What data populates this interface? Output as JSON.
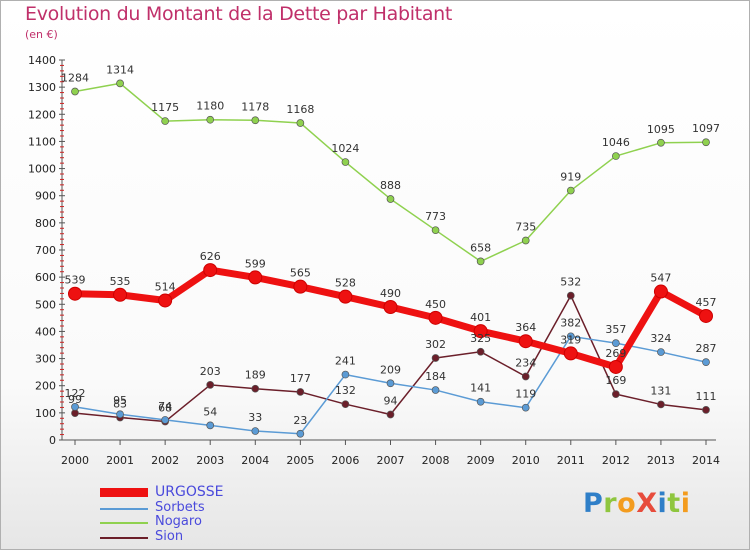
{
  "title": "Evolution du Montant de la Dette par Habitant",
  "unit": "(en €)",
  "logo": "ProXiti",
  "chart_data": {
    "type": "line",
    "x": [
      "2000",
      "2001",
      "2002",
      "2003",
      "2004",
      "2005",
      "2006",
      "2007",
      "2008",
      "2009",
      "2010",
      "2011",
      "2012",
      "2013",
      "2014"
    ],
    "ylim": [
      0,
      1400
    ],
    "yticks": [
      0,
      100,
      200,
      300,
      400,
      500,
      600,
      700,
      800,
      900,
      1000,
      1100,
      1200,
      1300,
      1400
    ],
    "grid": false,
    "legend_position": "bottom-left",
    "series": [
      {
        "name": "URGOSSE",
        "color": "#ee1111",
        "values": [
          539,
          535,
          514,
          626,
          599,
          565,
          528,
          490,
          450,
          401,
          364,
          319,
          269,
          547,
          457
        ]
      },
      {
        "name": "Sorbets",
        "color": "#5b9bd5",
        "values": [
          122,
          95,
          74,
          54,
          33,
          23,
          241,
          209,
          184,
          141,
          119,
          382,
          357,
          324,
          287
        ]
      },
      {
        "name": "Nogaro",
        "color": "#8fd14f",
        "values": [
          1284,
          1314,
          1175,
          1180,
          1178,
          1168,
          1024,
          888,
          773,
          658,
          735,
          919,
          1046,
          1095,
          1097
        ]
      },
      {
        "name": "Sion",
        "color": "#6b1f2a",
        "values": [
          99,
          83,
          68,
          203,
          189,
          177,
          132,
          94,
          302,
          325,
          234,
          532,
          169,
          131,
          111
        ]
      }
    ],
    "value_labels": {
      "URGOSSE": [
        "539",
        "535",
        "514",
        "626",
        "599",
        "565",
        "528",
        "490",
        "450",
        "401",
        "364",
        "319",
        "269",
        "547",
        "457"
      ],
      "Sorbets": [
        "122",
        "95",
        "74",
        "54",
        "33",
        "23",
        "241",
        "209",
        "184",
        "141",
        "119",
        "382",
        "357",
        "324",
        "287"
      ],
      "Nogaro": [
        "1284",
        "1314",
        "1175",
        "1180",
        "1178",
        "1168",
        "1024",
        "888",
        "773",
        "658",
        "735",
        "919",
        "1046",
        "1095",
        "1097"
      ],
      "Sion": [
        "99",
        "83",
        "68",
        "203",
        "189",
        "177",
        "132",
        "94",
        "302",
        "325",
        "234",
        "532",
        "169",
        "131",
        "111"
      ]
    }
  }
}
